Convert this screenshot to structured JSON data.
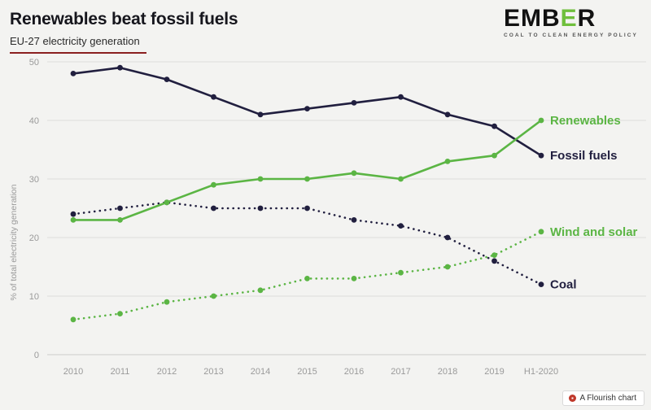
{
  "header": {
    "title": "Renewables beat fossil fuels",
    "subtitle": "EU-27 electricity generation",
    "logo": {
      "part1": "EMB",
      "part2": "E",
      "part3": "R",
      "tagline": "COAL TO CLEAN ENERGY POLICY"
    }
  },
  "footer": {
    "credit": "A Flourish chart"
  },
  "colors": {
    "green": "#5bb544",
    "navy": "#211f3f",
    "axis_text": "#9a9a9a",
    "gridline": "#dddddc",
    "baseline": "#cccccb",
    "background": "#f3f3f1",
    "subtitle_rule": "#8b2020",
    "flourish_red": "#c0392b"
  },
  "chart_data": {
    "type": "line",
    "title": "Renewables beat fossil fuels",
    "subtitle": "EU-27 electricity generation",
    "categories": [
      "2010",
      "2011",
      "2012",
      "2013",
      "2014",
      "2015",
      "2016",
      "2017",
      "2018",
      "2019",
      "H1-2020"
    ],
    "series": [
      {
        "name": "Coal",
        "color": "#211f3f",
        "style": "dotted",
        "values": [
          24,
          25,
          26,
          25,
          25,
          25,
          23,
          22,
          20,
          16,
          12
        ]
      },
      {
        "name": "Fossil fuels",
        "color": "#211f3f",
        "style": "solid",
        "values": [
          48,
          49,
          47,
          44,
          41,
          42,
          43,
          44,
          41,
          39,
          34
        ]
      },
      {
        "name": "Wind and solar",
        "color": "#5bb544",
        "style": "dotted",
        "values": [
          6,
          7,
          9,
          10,
          11,
          13,
          13,
          14,
          15,
          17,
          21
        ]
      },
      {
        "name": "Renewables",
        "color": "#5bb544",
        "style": "solid",
        "values": [
          23,
          23,
          26,
          29,
          30,
          30,
          31,
          30,
          33,
          34,
          40
        ]
      }
    ],
    "xlabel": "",
    "ylabel": "% of total electricity generation",
    "ylim": [
      0,
      50
    ],
    "yticks": [
      0,
      10,
      20,
      30,
      40,
      50
    ],
    "grid": true,
    "legend_position": "end-of-line-labels"
  }
}
